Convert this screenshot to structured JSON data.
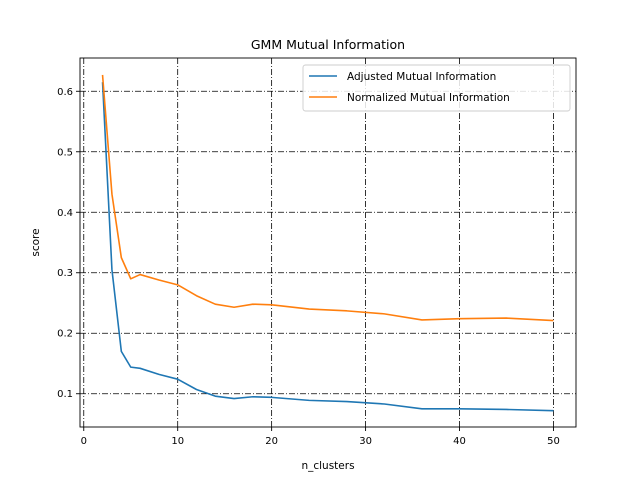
{
  "chart_data": {
    "type": "line",
    "title": "GMM Mutual Information",
    "xlabel": "n_clusters",
    "ylabel": "score",
    "xlim": [
      -0.4,
      52.4
    ],
    "ylim": [
      0.045,
      0.655
    ],
    "xticks": [
      0,
      10,
      20,
      30,
      40,
      50
    ],
    "yticks": [
      0.1,
      0.2,
      0.3,
      0.4,
      0.5,
      0.6
    ],
    "xtick_labels": [
      "0",
      "10",
      "20",
      "30",
      "40",
      "50"
    ],
    "ytick_labels": [
      "0.1",
      "0.2",
      "0.3",
      "0.4",
      "0.5",
      "0.6"
    ],
    "grid": true,
    "legend_position": "upper right",
    "x": [
      2,
      3,
      4,
      5,
      6,
      8,
      10,
      12,
      14,
      16,
      18,
      20,
      24,
      28,
      32,
      36,
      40,
      45,
      50
    ],
    "series": [
      {
        "name": "Adjusted Mutual Information",
        "color": "#1f77b4",
        "values": [
          0.615,
          0.305,
          0.17,
          0.144,
          0.142,
          0.132,
          0.124,
          0.107,
          0.096,
          0.092,
          0.095,
          0.094,
          0.089,
          0.087,
          0.083,
          0.075,
          0.075,
          0.074,
          0.072
        ]
      },
      {
        "name": "Normalized Mutual Information",
        "color": "#ff7f0e",
        "values": [
          0.627,
          0.43,
          0.325,
          0.29,
          0.297,
          0.288,
          0.28,
          0.262,
          0.248,
          0.243,
          0.248,
          0.247,
          0.24,
          0.237,
          0.232,
          0.222,
          0.224,
          0.225,
          0.221
        ]
      }
    ]
  }
}
